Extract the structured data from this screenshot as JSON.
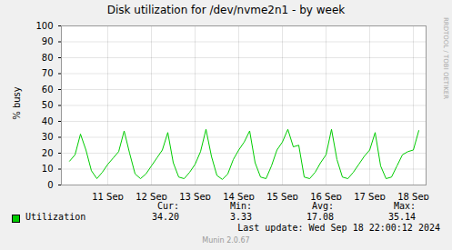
{
  "chart_data": {
    "type": "line",
    "title": "Disk utilization for /dev/nvme2n1 - by week",
    "y_label": "% busy",
    "categories": [
      null,
      null,
      null,
      null,
      null,
      null,
      null,
      "11 Sep",
      null,
      null,
      null,
      null,
      null,
      null,
      null,
      "12 Sep",
      null,
      null,
      null,
      null,
      null,
      null,
      null,
      "13 Sep",
      null,
      null,
      null,
      null,
      null,
      null,
      null,
      "14 Sep",
      null,
      null,
      null,
      null,
      null,
      null,
      null,
      "15 Sep",
      null,
      null,
      null,
      null,
      null,
      null,
      null,
      "16 Sep",
      null,
      null,
      null,
      null,
      null,
      null,
      null,
      "17 Sep",
      null,
      null,
      null,
      null,
      null,
      null,
      null,
      "18 Sep",
      null
    ],
    "series": [
      {
        "name": "Utilization",
        "color": "#00cc00",
        "values": [
          15,
          19,
          32,
          22,
          9,
          4,
          8,
          13,
          17,
          21,
          34,
          20,
          7,
          4,
          7,
          12,
          17,
          22,
          33,
          14,
          5,
          4,
          8,
          13,
          21,
          35,
          18,
          6,
          3.5,
          7,
          16,
          22,
          27,
          34,
          14,
          5,
          4,
          12,
          22,
          27,
          35,
          24,
          25,
          5,
          4,
          8,
          14,
          19,
          35,
          16,
          5,
          4,
          8,
          13,
          18,
          22,
          33,
          12,
          4,
          5,
          12,
          19,
          21,
          22,
          34.2
        ]
      }
    ],
    "ylim": [
      0,
      100
    ],
    "yticks": [
      0,
      10,
      20,
      30,
      40,
      50,
      60,
      70,
      80,
      90,
      100
    ],
    "grid": true,
    "legend": "bottom",
    "stats": [
      {
        "label": "Cur:",
        "value": 34.2
      },
      {
        "label": "Min:",
        "value": 3.33
      },
      {
        "label": "Avg:",
        "value": 17.08
      },
      {
        "label": "Max:",
        "value": 35.14
      }
    ],
    "last_update": "Last update: Wed Sep 18 22:00:12 2024",
    "footer": "Munin 2.0.67",
    "watermark": "RRDTOOL / TOBI OETIKER"
  }
}
